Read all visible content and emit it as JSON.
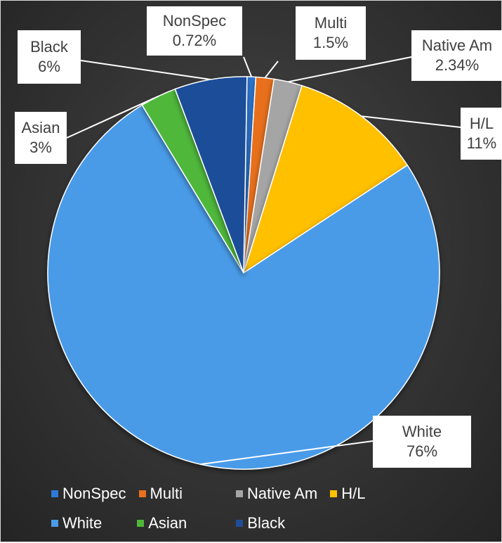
{
  "chart_data": {
    "type": "pie",
    "title": "",
    "slices": [
      {
        "label": "NonSpec",
        "value": 0.72,
        "value_label": "0.72%",
        "color": "#2f7ad9"
      },
      {
        "label": "Multi",
        "value": 1.5,
        "value_label": "1.5%",
        "color": "#e8701f"
      },
      {
        "label": "Native Am",
        "value": 2.34,
        "value_label": "2.34%",
        "color": "#a5a5a5"
      },
      {
        "label": "H/L",
        "value": 11,
        "value_label": "11%",
        "color": "#ffc000"
      },
      {
        "label": "White",
        "value": 76,
        "value_label": "76%",
        "color": "#4a9be8"
      },
      {
        "label": "Asian",
        "value": 3,
        "value_label": "3%",
        "color": "#4fb83a"
      },
      {
        "label": "Black",
        "value": 6,
        "value_label": "6%",
        "color": "#1f4e99"
      }
    ],
    "legend": {
      "position": "bottom",
      "rows": [
        [
          "NonSpec",
          "Multi",
          "Native Am",
          "H/L"
        ],
        [
          "White",
          "Asian",
          "Black"
        ]
      ]
    },
    "background": "#333333"
  }
}
